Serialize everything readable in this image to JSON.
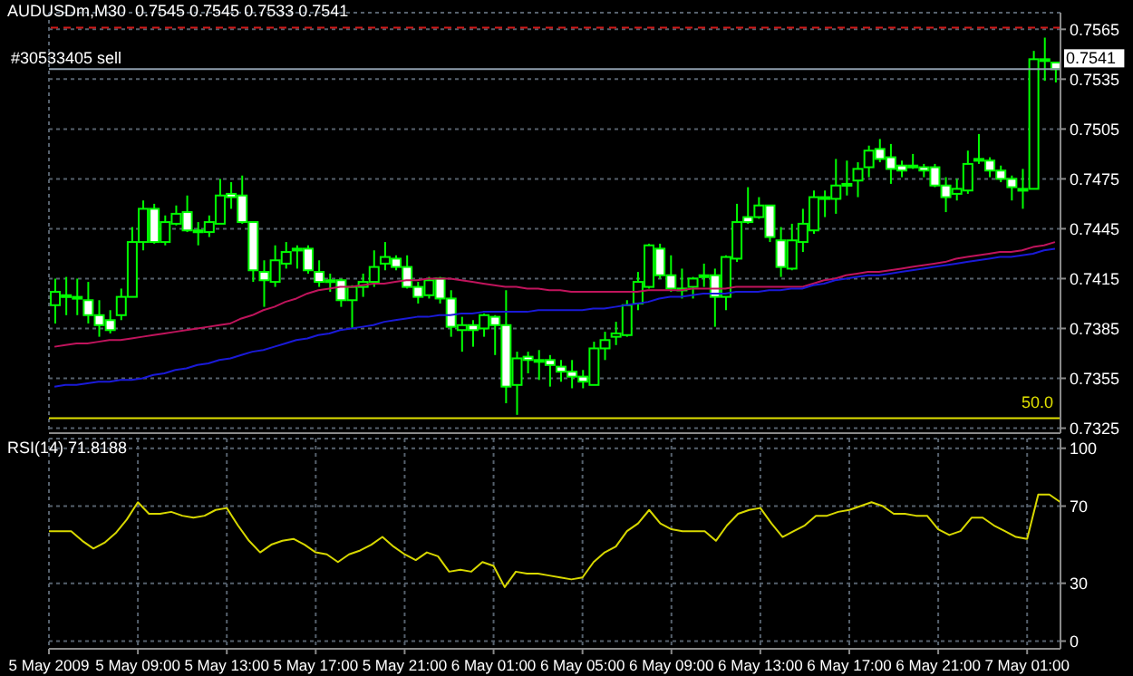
{
  "chart_data": [
    {
      "type": "candlestick",
      "title": "AUDUSDm,M30  0.7545 0.7545 0.7533 0.7541",
      "color": "#00ff00",
      "categories": [
        null,
        null,
        null,
        null,
        null,
        null,
        null,
        null,
        null,
        null,
        null,
        null,
        null,
        null,
        null,
        null,
        null,
        null,
        null,
        null,
        null,
        null,
        null,
        null,
        null,
        null,
        null,
        null,
        null,
        null,
        null,
        null,
        null,
        null,
        null,
        null,
        null,
        null,
        null,
        null,
        null,
        null,
        null,
        null,
        null,
        null,
        null,
        null,
        null,
        null,
        null,
        null,
        null,
        null,
        null,
        null,
        null,
        null,
        null,
        null,
        null,
        null,
        null,
        null,
        null,
        null,
        null,
        null,
        null,
        null,
        null,
        null,
        null,
        null,
        null,
        null,
        null,
        null,
        null,
        null,
        null,
        null,
        null,
        null,
        null,
        null,
        null,
        null,
        null,
        null,
        null,
        null
      ],
      "ohlc": [
        [
          0.7399,
          0.7415,
          0.7388,
          0.7407
        ],
        [
          0.7404,
          0.7416,
          0.7393,
          0.7405
        ],
        [
          0.7404,
          0.7415,
          0.7393,
          0.7404
        ],
        [
          0.7402,
          0.7413,
          0.7388,
          0.7393
        ],
        [
          0.7393,
          0.7402,
          0.738,
          0.7387
        ],
        [
          0.739,
          0.7396,
          0.7382,
          0.7384
        ],
        [
          0.7393,
          0.7409,
          0.739,
          0.7404
        ],
        [
          0.7404,
          0.7446,
          0.7404,
          0.7437
        ],
        [
          0.7437,
          0.7462,
          0.7432,
          0.7457
        ],
        [
          0.7457,
          0.746,
          0.7436,
          0.7437
        ],
        [
          0.7437,
          0.7453,
          0.7435,
          0.7449
        ],
        [
          0.7448,
          0.7459,
          0.7447,
          0.7454
        ],
        [
          0.7455,
          0.7465,
          0.7443,
          0.7444
        ],
        [
          0.7444,
          0.7449,
          0.7435,
          0.7444
        ],
        [
          0.7443,
          0.7453,
          0.744,
          0.7449
        ],
        [
          0.7448,
          0.7475,
          0.7448,
          0.7465
        ],
        [
          0.7466,
          0.7473,
          0.7457,
          0.7464
        ],
        [
          0.7465,
          0.7477,
          0.7448,
          0.7449
        ],
        [
          0.7449,
          0.7449,
          0.7413,
          0.742
        ],
        [
          0.7419,
          0.7426,
          0.7398,
          0.7414
        ],
        [
          0.7413,
          0.7435,
          0.741,
          0.7426
        ],
        [
          0.7424,
          0.7437,
          0.7421,
          0.7431
        ],
        [
          0.7432,
          0.7435,
          0.7421,
          0.7433
        ],
        [
          0.7433,
          0.7435,
          0.7418,
          0.742
        ],
        [
          0.7419,
          0.7426,
          0.741,
          0.7413
        ],
        [
          0.7414,
          0.7418,
          0.7407,
          0.7414
        ],
        [
          0.7414,
          0.7415,
          0.7398,
          0.7402
        ],
        [
          0.7402,
          0.7411,
          0.7385,
          0.741
        ],
        [
          0.741,
          0.7418,
          0.7404,
          0.7413
        ],
        [
          0.7413,
          0.7432,
          0.741,
          0.7422
        ],
        [
          0.7424,
          0.7437,
          0.742,
          0.7428
        ],
        [
          0.7427,
          0.7429,
          0.742,
          0.7422
        ],
        [
          0.7422,
          0.7429,
          0.7409,
          0.741
        ],
        [
          0.741,
          0.7413,
          0.74,
          0.7404
        ],
        [
          0.7405,
          0.7416,
          0.7403,
          0.7414
        ],
        [
          0.7415,
          0.7416,
          0.74,
          0.7403
        ],
        [
          0.7403,
          0.7408,
          0.738,
          0.7386
        ],
        [
          0.7384,
          0.7392,
          0.7371,
          0.7387
        ],
        [
          0.7387,
          0.739,
          0.7374,
          0.7384
        ],
        [
          0.7385,
          0.7394,
          0.738,
          0.7393
        ],
        [
          0.7392,
          0.7393,
          0.7369,
          0.7387
        ],
        [
          0.7387,
          0.7408,
          0.734,
          0.735
        ],
        [
          0.7351,
          0.7371,
          0.7333,
          0.7367
        ],
        [
          0.7368,
          0.7371,
          0.7358,
          0.7366
        ],
        [
          0.7366,
          0.7372,
          0.7354,
          0.7366
        ],
        [
          0.7366,
          0.7369,
          0.735,
          0.7363
        ],
        [
          0.7362,
          0.7366,
          0.7353,
          0.7359
        ],
        [
          0.7359,
          0.7366,
          0.7349,
          0.7356
        ],
        [
          0.7356,
          0.736,
          0.7349,
          0.7353
        ],
        [
          0.7351,
          0.7377,
          0.7351,
          0.7373
        ],
        [
          0.7373,
          0.7383,
          0.7366,
          0.7378
        ],
        [
          0.738,
          0.7389,
          0.7375,
          0.7382
        ],
        [
          0.7381,
          0.7402,
          0.738,
          0.7399
        ],
        [
          0.74,
          0.7419,
          0.7396,
          0.7413
        ],
        [
          0.741,
          0.7436,
          0.7409,
          0.7435
        ],
        [
          0.7433,
          0.7436,
          0.7415,
          0.7417
        ],
        [
          0.7417,
          0.7429,
          0.7407,
          0.7409
        ],
        [
          0.7409,
          0.7421,
          0.7403,
          0.7409
        ],
        [
          0.741,
          0.7416,
          0.7403,
          0.7415
        ],
        [
          0.7416,
          0.7424,
          0.741,
          0.7417
        ],
        [
          0.7417,
          0.7421,
          0.7386,
          0.7404
        ],
        [
          0.7404,
          0.7429,
          0.7396,
          0.7428
        ],
        [
          0.7427,
          0.746,
          0.7425,
          0.7449
        ],
        [
          0.7452,
          0.747,
          0.7448,
          0.7449
        ],
        [
          0.7452,
          0.7464,
          0.7451,
          0.7459
        ],
        [
          0.7459,
          0.7459,
          0.7437,
          0.744
        ],
        [
          0.7438,
          0.7446,
          0.7416,
          0.7422
        ],
        [
          0.7421,
          0.7448,
          0.742,
          0.7438
        ],
        [
          0.7437,
          0.7457,
          0.7431,
          0.7448
        ],
        [
          0.7444,
          0.7468,
          0.7442,
          0.7464
        ],
        [
          0.7464,
          0.7468,
          0.7452,
          0.7464
        ],
        [
          0.7463,
          0.7487,
          0.7454,
          0.7471
        ],
        [
          0.7472,
          0.7486,
          0.7465,
          0.7471
        ],
        [
          0.7474,
          0.7485,
          0.7464,
          0.7481
        ],
        [
          0.7482,
          0.7495,
          0.7476,
          0.7492
        ],
        [
          0.7493,
          0.7499,
          0.7485,
          0.7487
        ],
        [
          0.7488,
          0.7496,
          0.7472,
          0.7481
        ],
        [
          0.7483,
          0.7486,
          0.7476,
          0.748
        ],
        [
          0.7483,
          0.749,
          0.7481,
          0.7483
        ],
        [
          0.7482,
          0.7484,
          0.7476,
          0.748
        ],
        [
          0.7482,
          0.7484,
          0.747,
          0.7471
        ],
        [
          0.7471,
          0.7476,
          0.7455,
          0.7464
        ],
        [
          0.7466,
          0.7475,
          0.7462,
          0.7469
        ],
        [
          0.7468,
          0.7492,
          0.7466,
          0.7484
        ],
        [
          0.7486,
          0.7502,
          0.7484,
          0.7487
        ],
        [
          0.7486,
          0.7488,
          0.7476,
          0.748
        ],
        [
          0.748,
          0.7483,
          0.7473,
          0.7475
        ],
        [
          0.7475,
          0.7477,
          0.7462,
          0.747
        ],
        [
          0.7469,
          0.7481,
          0.7457,
          0.7469
        ],
        [
          0.7469,
          0.7552,
          0.7469,
          0.7547
        ],
        [
          0.7547,
          0.756,
          0.7534,
          0.7547
        ],
        [
          0.7545,
          0.7545,
          0.7533,
          0.7541
        ]
      ],
      "series": [
        {
          "type": "line",
          "color": "#c0145c",
          "values": [
            0.7374,
            0.7375,
            0.7376,
            0.7376,
            0.7377,
            0.7378,
            0.7378,
            0.7379,
            0.738,
            0.7381,
            0.7382,
            0.7383,
            0.7384,
            0.7385,
            0.7386,
            0.7387,
            0.7388,
            0.7391,
            0.7393,
            0.7396,
            0.7398,
            0.7401,
            0.7403,
            0.7406,
            0.7408,
            0.7409,
            0.741,
            0.741,
            0.7411,
            0.7412,
            0.7412,
            0.7413,
            0.7414,
            0.7414,
            0.7415,
            0.7415,
            0.7415,
            0.7414,
            0.7413,
            0.7412,
            0.7411,
            0.741,
            0.741,
            0.7409,
            0.7409,
            0.7408,
            0.7408,
            0.7407,
            0.7407,
            0.7407,
            0.7407,
            0.7407,
            0.7407,
            0.7407,
            0.7408,
            0.7408,
            0.7408,
            0.7408,
            0.7409,
            0.7409,
            0.7409,
            0.7409,
            0.741,
            0.741,
            0.741,
            0.741,
            0.741,
            0.741,
            0.741,
            0.7412,
            0.7414,
            0.7415,
            0.7417,
            0.7418,
            0.7419,
            0.7419,
            0.742,
            0.7421,
            0.7422,
            0.7423,
            0.7424,
            0.7425,
            0.7427,
            0.7428,
            0.7429,
            0.743,
            0.7431,
            0.7431,
            0.7432,
            0.7434,
            0.7435,
            0.7437
          ]
        },
        {
          "type": "line",
          "color": "#1a1ad8",
          "values": [
            0.735,
            0.7351,
            0.7351,
            0.7352,
            0.7353,
            0.7353,
            0.7354,
            0.7354,
            0.7355,
            0.7357,
            0.7358,
            0.736,
            0.7361,
            0.7363,
            0.7364,
            0.7366,
            0.7367,
            0.7369,
            0.7371,
            0.7372,
            0.7374,
            0.7376,
            0.7378,
            0.7379,
            0.7381,
            0.7382,
            0.7384,
            0.7385,
            0.7386,
            0.7387,
            0.7389,
            0.739,
            0.7391,
            0.7392,
            0.7392,
            0.7393,
            0.7393,
            0.7394,
            0.7394,
            0.7395,
            0.7395,
            0.7395,
            0.7395,
            0.7395,
            0.7396,
            0.7396,
            0.7396,
            0.7396,
            0.7396,
            0.7397,
            0.7397,
            0.7398,
            0.7399,
            0.74,
            0.7401,
            0.7403,
            0.7404,
            0.7404,
            0.7405,
            0.7406,
            0.7406,
            0.7406,
            0.7407,
            0.7407,
            0.7407,
            0.7408,
            0.7408,
            0.7409,
            0.7409,
            0.7411,
            0.7412,
            0.7414,
            0.7415,
            0.7416,
            0.7417,
            0.7417,
            0.7418,
            0.7419,
            0.742,
            0.7421,
            0.7422,
            0.7423,
            0.7424,
            0.7425,
            0.7426,
            0.7427,
            0.7428,
            0.7428,
            0.7429,
            0.743,
            0.7432,
            0.7433
          ]
        }
      ],
      "ylim": [
        0.7322,
        0.7575
      ],
      "yticks": [
        0.7325,
        0.7355,
        0.7385,
        0.7415,
        0.7445,
        0.7475,
        0.7505,
        0.7535,
        0.7565
      ],
      "ref_lines": [
        {
          "axis": "y",
          "value": 0.7566,
          "color": "#d01818",
          "line_style": "dashed"
        },
        {
          "axis": "y",
          "value": 0.7541,
          "label": "0.7541",
          "color": "#8f9fae"
        },
        {
          "axis": "y",
          "value": 0.7331,
          "color": "#e0e000"
        }
      ],
      "annotations": [
        "#30533405 sell",
        "50.0"
      ],
      "grid": true,
      "tick_labels": "y"
    },
    {
      "type": "line",
      "title": "RSI(14) 71.8188",
      "categories": [
        "5 May 2009",
        null,
        null,
        null,
        null,
        null,
        null,
        null,
        "5 May 09:00",
        null,
        null,
        null,
        null,
        null,
        null,
        null,
        "5 May 13:00",
        null,
        null,
        null,
        null,
        null,
        null,
        null,
        "5 May 17:00",
        null,
        null,
        null,
        null,
        null,
        null,
        null,
        "5 May 21:00",
        null,
        null,
        null,
        null,
        null,
        null,
        null,
        "6 May 01:00",
        null,
        null,
        null,
        null,
        null,
        null,
        null,
        "6 May 05:00",
        null,
        null,
        null,
        null,
        null,
        null,
        null,
        "6 May 09:00",
        null,
        null,
        null,
        null,
        null,
        null,
        null,
        "6 May 13:00",
        null,
        null,
        null,
        null,
        null,
        null,
        null,
        "6 May 17:00",
        null,
        null,
        null,
        null,
        null,
        null,
        null,
        "6 May 21:00",
        null,
        null,
        null,
        null,
        null,
        null,
        null,
        "7 May 01:00",
        null,
        null,
        null
      ],
      "series": [
        {
          "type": "line",
          "color": "#d8d800",
          "values": [
            57,
            57,
            57,
            52,
            48,
            51,
            56,
            63,
            72,
            66,
            66,
            67,
            65,
            64,
            65,
            68,
            69,
            60,
            52,
            46,
            50,
            52,
            53,
            50,
            46,
            45,
            41,
            45,
            47,
            50,
            54,
            49,
            45,
            42,
            46,
            44,
            36,
            37,
            36,
            41,
            39,
            28,
            36,
            35,
            35,
            34,
            33,
            32,
            33,
            41,
            46,
            49,
            57,
            61,
            68,
            61,
            58,
            57,
            57,
            57,
            52,
            60,
            66,
            68,
            69,
            61,
            54,
            57,
            60,
            65,
            65,
            67,
            68,
            70,
            72,
            70,
            66,
            66,
            65,
            65,
            58,
            55,
            57,
            64,
            64,
            60,
            57,
            54,
            53,
            76,
            76,
            72
          ]
        }
      ],
      "ylim": [
        -4,
        105
      ],
      "yticks": [
        0,
        30,
        70,
        100
      ],
      "grid": true
    }
  ]
}
